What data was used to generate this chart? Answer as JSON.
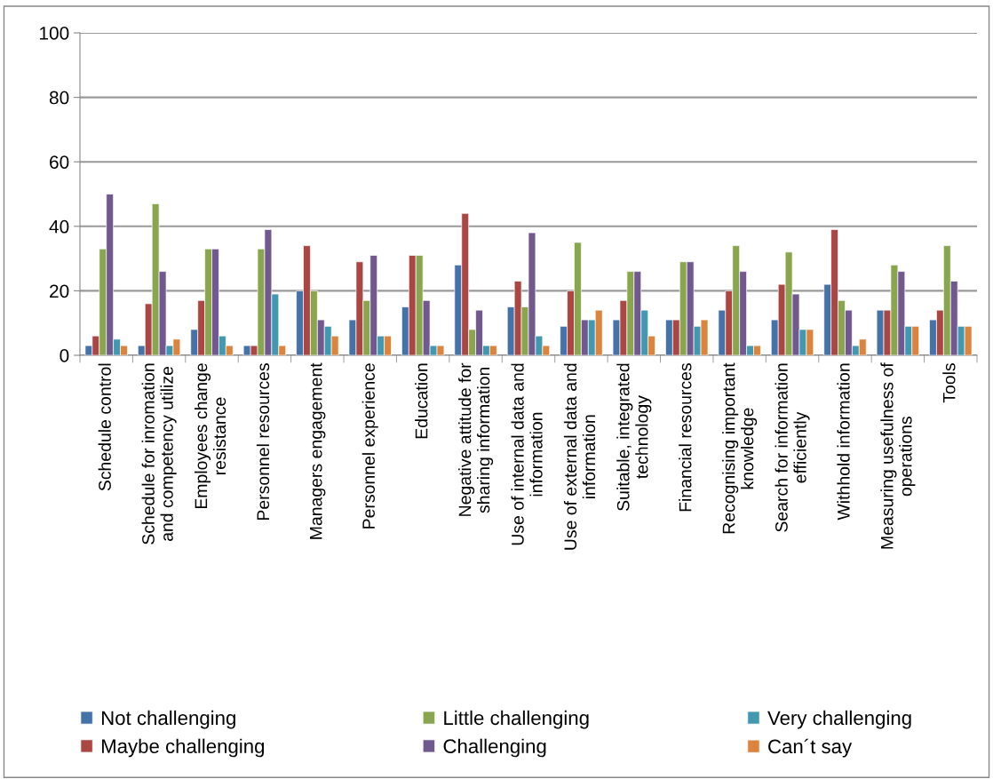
{
  "chart_data": {
    "type": "bar",
    "categories": [
      "Schedule control",
      "Schedule for inromation and competency utilize",
      "Employees change resistance",
      "Personnel resources",
      "Managers engagement",
      "Personnel experience",
      "Education",
      "Negative attitude for sharing information",
      "Use of internal data and information",
      "Use of external data and information",
      "Suitable, integrated technology",
      "Financial resources",
      "Recognising important knowledge",
      "Search for information efficiently",
      "Withhold information",
      "Measuring usefulness of operations",
      "Tools"
    ],
    "series": [
      {
        "name": "Not challenging",
        "color": "#4572a7",
        "values": [
          3,
          3,
          8,
          3,
          20,
          11,
          15,
          28,
          15,
          9,
          11,
          11,
          14,
          11,
          22,
          14,
          11
        ]
      },
      {
        "name": "Maybe challenging",
        "color": "#aa4643",
        "values": [
          6,
          16,
          17,
          3,
          34,
          29,
          31,
          44,
          23,
          20,
          17,
          11,
          20,
          22,
          39,
          14,
          14
        ]
      },
      {
        "name": "Little challenging",
        "color": "#89a54e",
        "values": [
          33,
          47,
          33,
          33,
          20,
          17,
          31,
          8,
          15,
          35,
          26,
          29,
          34,
          32,
          17,
          28,
          34
        ]
      },
      {
        "name": "Challenging",
        "color": "#71588f",
        "values": [
          50,
          26,
          33,
          39,
          11,
          31,
          17,
          14,
          38,
          11,
          26,
          29,
          26,
          19,
          14,
          26,
          23
        ]
      },
      {
        "name": "Very challenging",
        "color": "#4198af",
        "values": [
          5,
          3,
          6,
          19,
          9,
          6,
          3,
          3,
          6,
          11,
          14,
          9,
          3,
          8,
          3,
          9,
          9
        ]
      },
      {
        "name": "Can´t say",
        "color": "#db843d",
        "values": [
          3,
          5,
          3,
          3,
          6,
          6,
          3,
          3,
          3,
          14,
          6,
          11,
          3,
          8,
          5,
          9,
          9
        ]
      }
    ],
    "ylim": [
      0,
      100
    ],
    "yticks": [
      0,
      20,
      40,
      60,
      80,
      100
    ],
    "grid": "y",
    "legend": "bottom"
  }
}
